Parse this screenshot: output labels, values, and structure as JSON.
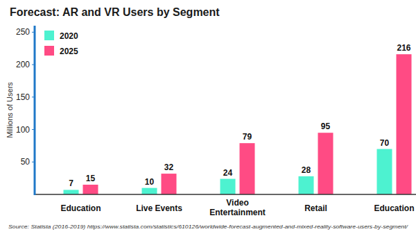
{
  "chart_data": {
    "type": "bar",
    "title": "Forecast: AR and VR Users by Segment",
    "y_label": "Millions of Users",
    "source": "Source: Statista (2016-2019)  https://www.statista.com/statistics/610126/worldwide-forecast-augmented-and-mixed-reality-software-users-by-segment/",
    "categories": [
      "Education",
      "Live Events",
      "Video Entertainment",
      "Retail",
      "Education"
    ],
    "series": [
      {
        "name": "2020",
        "color": "#4df2d0",
        "values": [
          7,
          10,
          24,
          28,
          70
        ]
      },
      {
        "name": "2025",
        "color": "#ff4b84",
        "values": [
          15,
          32,
          79,
          95,
          216
        ]
      }
    ],
    "ylim": [
      0,
      260
    ],
    "yticks": [
      50,
      100,
      150,
      200,
      250
    ],
    "grid": false,
    "legend": "top-left",
    "data_labels": true
  }
}
